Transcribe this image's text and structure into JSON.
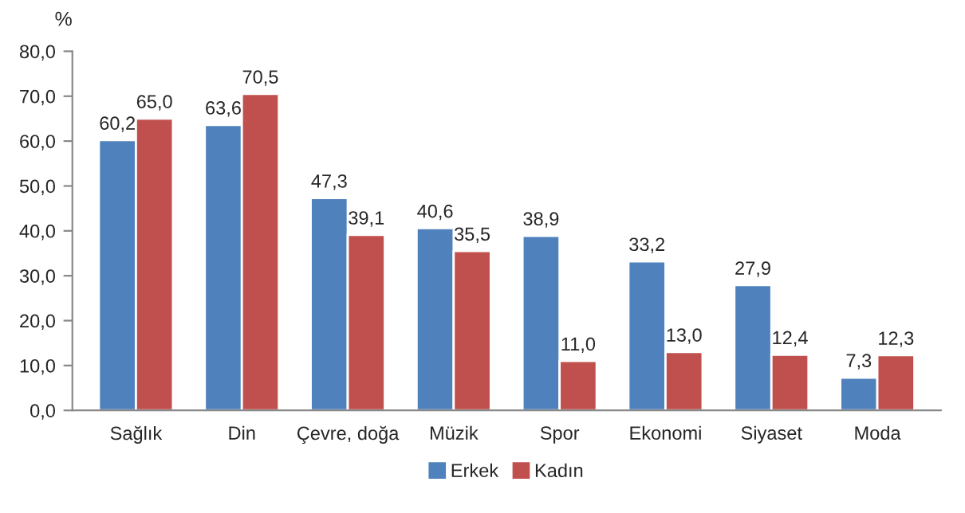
{
  "chart_data": {
    "type": "bar",
    "ylabel": "%",
    "categories": [
      "Sağlık",
      "Din",
      "Çevre, doğa",
      "Müzik",
      "Spor",
      "Ekonomi",
      "Siyaset",
      "Moda"
    ],
    "series": [
      {
        "name": "Erkek",
        "color": "#4f81bd",
        "values": [
          60.2,
          63.6,
          47.3,
          40.6,
          38.9,
          33.2,
          27.9,
          7.3
        ],
        "value_labels": [
          "60,2",
          "63,6",
          "47,3",
          "40,6",
          "38,9",
          "33,2",
          "27,9",
          "7,3"
        ]
      },
      {
        "name": "Kadın",
        "color": "#c0504d",
        "values": [
          65.0,
          70.5,
          39.1,
          35.5,
          11.0,
          13.0,
          12.4,
          12.3
        ],
        "value_labels": [
          "65,0",
          "70,5",
          "39,1",
          "35,5",
          "11,0",
          "13,0",
          "12,4",
          "12,3"
        ]
      }
    ],
    "ylim": [
      0,
      80
    ],
    "yticks": [
      {
        "value": 0,
        "label": "0,0"
      },
      {
        "value": 10,
        "label": "10,0"
      },
      {
        "value": 20,
        "label": "20,0"
      },
      {
        "value": 30,
        "label": "30,0"
      },
      {
        "value": 40,
        "label": "40,0"
      },
      {
        "value": 50,
        "label": "50,0"
      },
      {
        "value": 60,
        "label": "60,0"
      },
      {
        "value": 70,
        "label": "70,0"
      },
      {
        "value": 80,
        "label": "80,0"
      }
    ],
    "grid": false,
    "legend": "bottom"
  }
}
